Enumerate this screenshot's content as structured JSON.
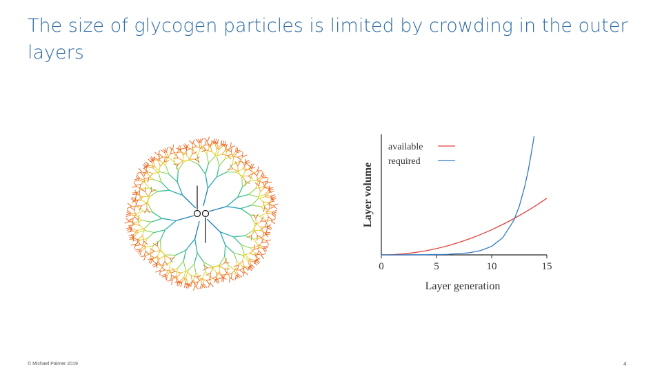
{
  "slide": {
    "title": "The size of glycogen particles is limited by crowding in the outer layers",
    "footer_left": "© Michael Palmer 2019",
    "page_number": "4"
  },
  "chart_data": {
    "type": "line",
    "xlabel": "Layer generation",
    "ylabel": "Layer volume",
    "xlim": [
      0,
      15
    ],
    "xticks": [
      "0",
      "5",
      "10",
      "15"
    ],
    "legend_position": "top-left",
    "series": [
      {
        "name": "available",
        "color": "#e0403a",
        "x": [
          0,
          1,
          2,
          3,
          4,
          5,
          6,
          7,
          8,
          9,
          10,
          11,
          12,
          13,
          14,
          15
        ],
        "y": [
          0,
          0.08,
          0.3,
          0.68,
          1.2,
          1.88,
          2.7,
          3.68,
          4.8,
          6.08,
          7.5,
          9.08,
          10.8,
          12.68,
          14.7,
          16.9
        ]
      },
      {
        "name": "required",
        "color": "#2f78c4",
        "x": [
          0,
          2,
          4,
          6,
          8,
          9,
          10,
          11,
          12,
          12.5,
          13,
          13.3,
          13.6,
          13.85
        ],
        "y": [
          0,
          0.01,
          0.04,
          0.16,
          0.64,
          1.28,
          2.56,
          5.12,
          10.24,
          14.5,
          20.5,
          25,
          30.5,
          35.5
        ]
      }
    ],
    "ylim": [
      0,
      36
    ]
  },
  "figure": {
    "tree_colors": [
      "#1b7fb0",
      "#2aa5b8",
      "#3cbf8f",
      "#7fce4a",
      "#d9d62c",
      "#f3a72a",
      "#ed6a2a"
    ]
  }
}
